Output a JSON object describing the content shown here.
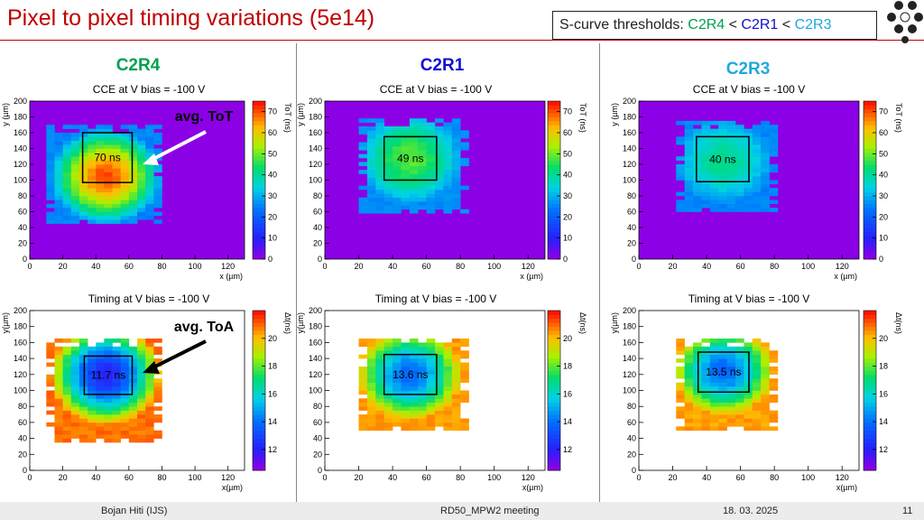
{
  "slide": {
    "title": "Pixel to pixel timing variations (5e14)",
    "scurve_prefix": "S-curve thresholds: ",
    "scurve_a": "C2R4",
    "lt1": " < ",
    "scurve_b": "C2R1",
    "lt2": " < ",
    "scurve_c": "C2R3"
  },
  "columns": [
    {
      "label": "C2R4",
      "color": "#00a050"
    },
    {
      "label": "C2R1",
      "color": "#1010d0"
    },
    {
      "label": "C2R3",
      "color": "#20a8e0"
    }
  ],
  "annotations": {
    "tot": "avg. ToT",
    "toa": "avg. ToA"
  },
  "footer": {
    "author": "Bojan Hiti (IJS)",
    "meeting": "RD50_MPW2 meeting",
    "date": "18. 03. 2025",
    "page": "11"
  },
  "chart_data": [
    {
      "type": "heatmap",
      "title": "CCE at V bias = -100 V",
      "xlabel": "x (µm)",
      "ylabel": "y (µm)",
      "zlabel": "ToT (ns)",
      "xlim": [
        0,
        130
      ],
      "ylim": [
        0,
        200
      ],
      "zlim": [
        0,
        75
      ],
      "xticks": [
        "0",
        "20",
        "40",
        "60",
        "80",
        "100",
        "120"
      ],
      "yticks": [
        "0",
        "20",
        "40",
        "60",
        "80",
        "100",
        "120",
        "140",
        "160",
        "180",
        "200"
      ],
      "zticks": [
        "0",
        "10",
        "20",
        "30",
        "40",
        "50",
        "60",
        "70"
      ],
      "sensor": {
        "x": [
          10,
          78
        ],
        "y": [
          45,
          168
        ]
      },
      "center": [
        46,
        105
      ],
      "peak": 72,
      "edge": 25,
      "roi": {
        "x": [
          32,
          62
        ],
        "y": [
          97,
          160
        ]
      },
      "roi_label": "70 ns"
    },
    {
      "type": "heatmap",
      "title": "CCE at V bias = -100 V",
      "xlabel": "x (µm)",
      "ylabel": "y (µm)",
      "zlabel": "ToT (ns)",
      "xlim": [
        0,
        130
      ],
      "ylim": [
        0,
        200
      ],
      "zlim": [
        0,
        75
      ],
      "xticks": [
        "0",
        "20",
        "40",
        "60",
        "80",
        "100",
        "120"
      ],
      "yticks": [
        "0",
        "20",
        "40",
        "60",
        "80",
        "100",
        "120",
        "140",
        "160",
        "180",
        "200"
      ],
      "zticks": [
        "0",
        "10",
        "20",
        "30",
        "40",
        "50",
        "60",
        "70"
      ],
      "sensor": {
        "x": [
          20,
          82
        ],
        "y": [
          58,
          175
        ]
      },
      "center": [
        50,
        128
      ],
      "peak": 50,
      "edge": 26,
      "roi": {
        "x": [
          35,
          66
        ],
        "y": [
          100,
          155
        ]
      },
      "roi_label": "49 ns"
    },
    {
      "type": "heatmap",
      "title": "CCE at V bias = -100 V",
      "xlabel": "x (µm)",
      "ylabel": "y (µm)",
      "zlabel": "ToT (ns)",
      "xlim": [
        0,
        130
      ],
      "ylim": [
        0,
        200
      ],
      "zlim": [
        0,
        75
      ],
      "xticks": [
        "0",
        "20",
        "40",
        "60",
        "80",
        "100",
        "120"
      ],
      "yticks": [
        "0",
        "20",
        "40",
        "60",
        "80",
        "100",
        "120",
        "140",
        "160",
        "180",
        "200"
      ],
      "zticks": [
        "0",
        "10",
        "20",
        "30",
        "40",
        "50",
        "60",
        "70"
      ],
      "sensor": {
        "x": [
          22,
          82
        ],
        "y": [
          60,
          172
        ]
      },
      "center": [
        50,
        125
      ],
      "peak": 42,
      "edge": 25,
      "roi": {
        "x": [
          34,
          65
        ],
        "y": [
          98,
          155
        ]
      },
      "roi_label": "40 ns"
    },
    {
      "type": "heatmap",
      "title": "Timing at V bias = -100 V",
      "xlabel": "x(µm)",
      "ylabel": "y(µm)",
      "zlabel": "Δt(ns)",
      "xlim": [
        0,
        130
      ],
      "ylim": [
        0,
        200
      ],
      "zlim": [
        10.5,
        22
      ],
      "xticks": [
        "0",
        "20",
        "40",
        "60",
        "80",
        "100",
        "120"
      ],
      "yticks": [
        "0",
        "20",
        "40",
        "60",
        "80",
        "100",
        "120",
        "140",
        "160",
        "180",
        "200"
      ],
      "zticks": [
        "12",
        "14",
        "16",
        "18",
        "20"
      ],
      "sensor": {
        "x": [
          10,
          78
        ],
        "y": [
          35,
          162
        ]
      },
      "center": [
        46,
        120
      ],
      "peak": 11.7,
      "edge": 21,
      "roi": {
        "x": [
          33,
          62
        ],
        "y": [
          95,
          143
        ]
      },
      "roi_label": "11.7 ns"
    },
    {
      "type": "heatmap",
      "title": "Timing at V bias = -100 V",
      "xlabel": "x(µm)",
      "ylabel": "y(µm)",
      "zlabel": "Δt(ns)",
      "xlim": [
        0,
        130
      ],
      "ylim": [
        0,
        200
      ],
      "zlim": [
        10.5,
        22
      ],
      "xticks": [
        "0",
        "20",
        "40",
        "60",
        "80",
        "100",
        "120"
      ],
      "yticks": [
        "0",
        "20",
        "40",
        "60",
        "80",
        "100",
        "120",
        "140",
        "160",
        "180",
        "200"
      ],
      "zticks": [
        "12",
        "14",
        "16",
        "18",
        "20"
      ],
      "sensor": {
        "x": [
          20,
          82
        ],
        "y": [
          50,
          165
        ]
      },
      "center": [
        50,
        120
      ],
      "peak": 13.6,
      "edge": 20.5,
      "roi": {
        "x": [
          35,
          66
        ],
        "y": [
          95,
          145
        ]
      },
      "roi_label": "13.6 ns"
    },
    {
      "type": "heatmap",
      "title": "Timing at V bias = -100 V",
      "xlabel": "x(µm)",
      "ylabel": "y(µm)",
      "zlabel": "Δt(ns)",
      "xlim": [
        0,
        130
      ],
      "ylim": [
        0,
        200
      ],
      "zlim": [
        10.5,
        22
      ],
      "xticks": [
        "0",
        "20",
        "40",
        "60",
        "80",
        "100",
        "120"
      ],
      "yticks": [
        "0",
        "20",
        "40",
        "60",
        "80",
        "100",
        "120",
        "140",
        "160",
        "180",
        "200"
      ],
      "zticks": [
        "12",
        "14",
        "16",
        "18",
        "20"
      ],
      "sensor": {
        "x": [
          22,
          82
        ],
        "y": [
          50,
          162
        ]
      },
      "center": [
        50,
        125
      ],
      "peak": 13.5,
      "edge": 20.5,
      "roi": {
        "x": [
          35,
          65
        ],
        "y": [
          98,
          148
        ]
      },
      "roi_label": "13.5 ns"
    }
  ]
}
